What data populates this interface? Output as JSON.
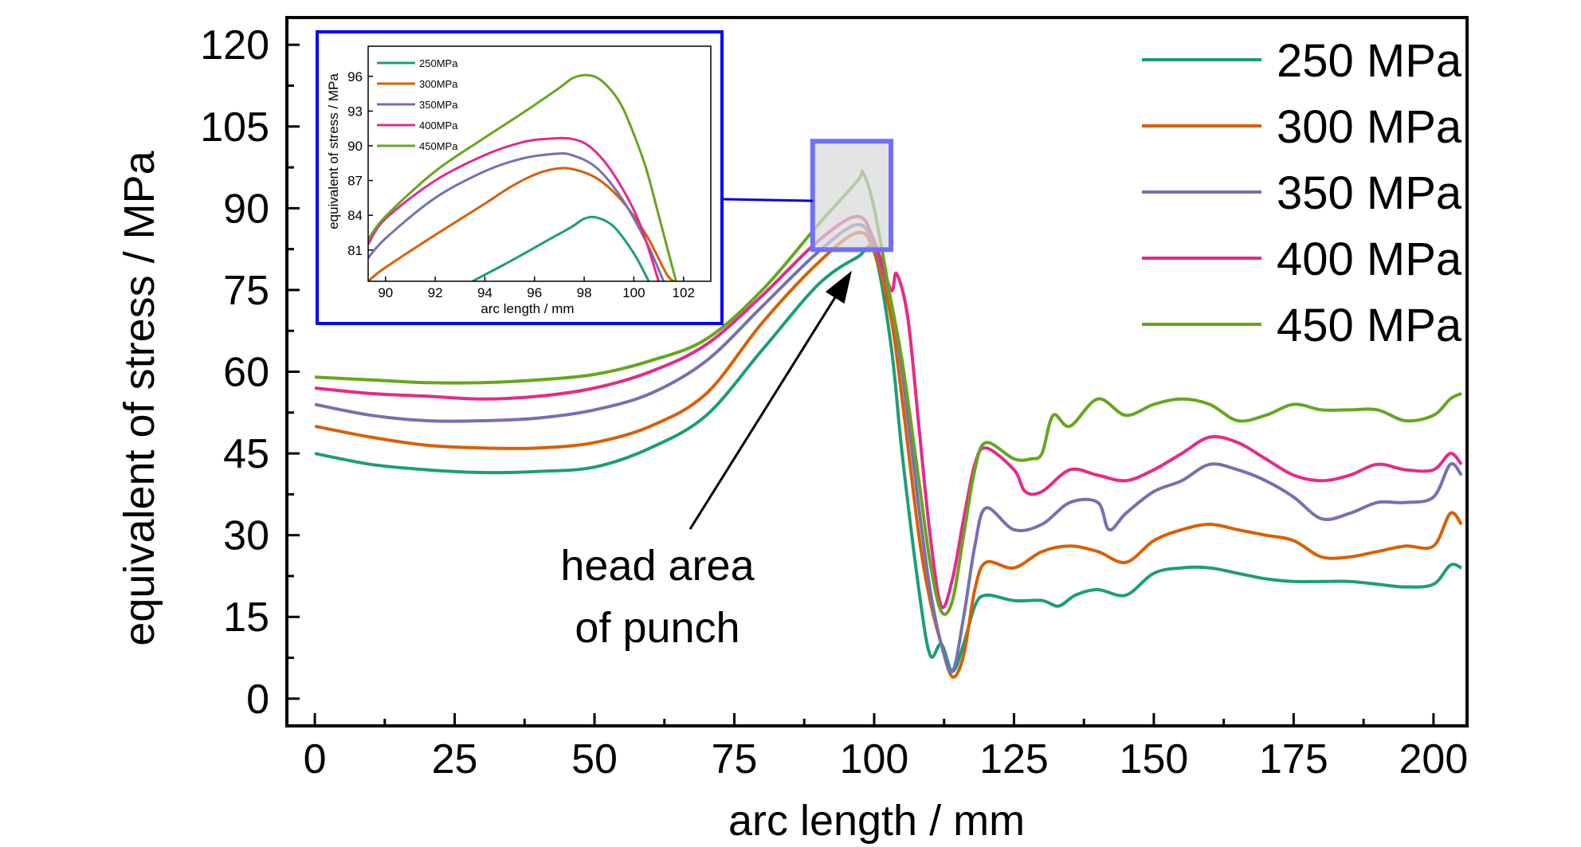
{
  "chart_data": {
    "type": "line",
    "xlabel": "arc length / mm",
    "ylabel": "equivalent of stress / MPa",
    "xlim": [
      -5,
      206
    ],
    "ylim": [
      -5,
      125
    ],
    "xticks": [
      0,
      25,
      50,
      75,
      100,
      125,
      150,
      175,
      200
    ],
    "yticks": [
      0,
      15,
      30,
      45,
      60,
      75,
      90,
      105,
      120
    ],
    "legend_position": "top-right",
    "colors": {
      "250": "#1b9e77",
      "300": "#d95f02",
      "350": "#7570b3",
      "400": "#e7298a",
      "450": "#66a61e",
      "zoom_box": "#0000ff"
    },
    "series": [
      {
        "name": "250 MPa",
        "x": [
          0,
          10,
          20,
          30,
          40,
          50,
          60,
          70,
          80,
          90,
          97,
          100,
          103,
          105,
          108,
          110,
          112,
          114,
          116,
          118,
          120,
          125,
          130,
          133,
          136,
          140,
          145,
          150,
          155,
          160,
          165,
          170,
          175,
          180,
          185,
          190,
          195,
          200,
          203,
          205
        ],
        "values": [
          45,
          43,
          42,
          41.5,
          41.7,
          42.5,
          46,
          52,
          64,
          76,
          81,
          82,
          65,
          45,
          20,
          8,
          10,
          5,
          10,
          17,
          19,
          18,
          18,
          17,
          19,
          20,
          19,
          23,
          24,
          24,
          23,
          22,
          21.5,
          21.5,
          21.5,
          21,
          20.5,
          21,
          24.5,
          24
        ]
      },
      {
        "name": "300 MPa",
        "x": [
          0,
          10,
          20,
          30,
          40,
          50,
          60,
          70,
          80,
          90,
          97,
          100,
          103,
          105,
          108,
          110,
          112,
          114,
          116,
          118,
          120,
          125,
          130,
          135,
          140,
          145,
          150,
          155,
          160,
          165,
          170,
          175,
          180,
          185,
          190,
          195,
          200,
          203,
          205
        ],
        "values": [
          50,
          48,
          46.5,
          46,
          46,
          47,
          50,
          56,
          69,
          80,
          85.5,
          82,
          70,
          55,
          30,
          18,
          10,
          4,
          8,
          20,
          25,
          24,
          27,
          28,
          27,
          25,
          29,
          31,
          32,
          31,
          30,
          29,
          26,
          26,
          27,
          28,
          28,
          34,
          32
        ]
      },
      {
        "name": "350 MPa",
        "x": [
          0,
          10,
          20,
          30,
          40,
          50,
          60,
          70,
          80,
          90,
          97,
          100,
          103,
          105,
          108,
          110,
          112,
          114,
          116,
          118,
          120,
          125,
          130,
          135,
          140,
          142,
          145,
          150,
          155,
          160,
          165,
          170,
          175,
          180,
          185,
          190,
          195,
          200,
          203,
          205
        ],
        "values": [
          54,
          52,
          51,
          51,
          51.5,
          53,
          56,
          62,
          72,
          82,
          87,
          83,
          73,
          60,
          35,
          20,
          10,
          5,
          15,
          28,
          35,
          31,
          32,
          36,
          36,
          31,
          34,
          38,
          40,
          43,
          42,
          40,
          37,
          33,
          34,
          36,
          36,
          37,
          43,
          41
        ]
      },
      {
        "name": "400 MPa",
        "x": [
          0,
          10,
          20,
          30,
          40,
          50,
          60,
          70,
          80,
          90,
          97,
          100,
          103,
          104,
          106,
          108,
          110,
          112,
          114,
          116,
          118,
          120,
          125,
          127,
          130,
          135,
          140,
          145,
          150,
          155,
          160,
          165,
          170,
          175,
          180,
          185,
          190,
          195,
          200,
          203,
          205
        ],
        "values": [
          57,
          56,
          55.5,
          55,
          55.5,
          57,
          60,
          65,
          74,
          84,
          88.5,
          84,
          75,
          78,
          70,
          50,
          30,
          17,
          22,
          33,
          43,
          46,
          42,
          38,
          38,
          42,
          41,
          40,
          42,
          45,
          48,
          47,
          44,
          41,
          40,
          41,
          43,
          42,
          42,
          45,
          43
        ]
      },
      {
        "name": "450 MPa",
        "x": [
          0,
          10,
          20,
          30,
          40,
          50,
          60,
          70,
          80,
          90,
          97,
          98,
          100,
          103,
          105,
          108,
          110,
          112,
          114,
          116,
          118,
          120,
          125,
          128,
          130,
          132,
          135,
          140,
          145,
          150,
          155,
          160,
          165,
          170,
          175,
          180,
          185,
          190,
          195,
          200,
          203,
          205
        ],
        "values": [
          59,
          58.5,
          58,
          58,
          58.5,
          59.5,
          62,
          66,
          75,
          87,
          95,
          96.5,
          90,
          73,
          62,
          40,
          25,
          16,
          18,
          30,
          42,
          47,
          44,
          44,
          45,
          52,
          50,
          55,
          52,
          54,
          55,
          54,
          51,
          52,
          54,
          53,
          53,
          53,
          51,
          52,
          55,
          56
        ]
      }
    ],
    "annotations": [
      {
        "text_lines": [
          "head area",
          "of punch"
        ],
        "points_to": [
          98,
          80
        ]
      }
    ],
    "inset": {
      "xlabel": "arc length / mm",
      "ylabel": "equivalent of stress / MPa",
      "xlim": [
        89.3,
        103.1
      ],
      "ylim": [
        78.3,
        98.6
      ],
      "xticks": [
        90,
        92,
        94,
        96,
        98,
        100,
        102
      ],
      "yticks": [
        81,
        84,
        87,
        90,
        93,
        96
      ],
      "legend_position": "top-left",
      "source_box": {
        "x": [
          89,
          103
        ],
        "y": [
          82.4,
          102.3
        ]
      },
      "series": [
        {
          "name": "250MPa",
          "x": [
            93.5,
            95,
            96.5,
            97.5,
            98,
            98.5,
            99.2,
            100,
            100.6,
            101
          ],
          "values": [
            78.3,
            80,
            81.8,
            83,
            83.7,
            83.8,
            83,
            80.7,
            78.3,
            76.5
          ]
        },
        {
          "name": "300MPa",
          "x": [
            89.3,
            90,
            92,
            94,
            95,
            96,
            96.8,
            97.5,
            98.5,
            99.5,
            100.5,
            101.3,
            101.6
          ],
          "values": [
            78.3,
            79.5,
            82.3,
            85,
            86.4,
            87.5,
            88,
            88,
            87.2,
            85.3,
            82.3,
            79,
            78.3
          ]
        },
        {
          "name": "350MPa",
          "x": [
            89.3,
            90,
            92,
            94,
            95.5,
            96.8,
            97.5,
            98.5,
            99.5,
            100.5,
            101.2
          ],
          "values": [
            80.3,
            82,
            85.5,
            87.8,
            88.9,
            89.3,
            89.2,
            88.1,
            85.5,
            81.7,
            78.3
          ]
        },
        {
          "name": "400MPa",
          "x": [
            89.3,
            90,
            92,
            94,
            95.5,
            96.5,
            97.5,
            98.3,
            99.2,
            100.2,
            101
          ],
          "values": [
            81.5,
            83.7,
            87,
            89.2,
            90.3,
            90.6,
            90.6,
            89.8,
            87.5,
            83.5,
            78.3
          ]
        },
        {
          "name": "450MPa",
          "x": [
            89.3,
            90,
            92,
            94,
            95.5,
            97,
            97.5,
            98,
            98.5,
            99,
            99.5,
            100,
            100.5,
            101,
            101.7
          ],
          "values": [
            81.9,
            83.9,
            87.8,
            90.7,
            92.8,
            95,
            95.8,
            96.1,
            95.9,
            95,
            93.5,
            91,
            88,
            84,
            78.3
          ]
        }
      ]
    }
  }
}
